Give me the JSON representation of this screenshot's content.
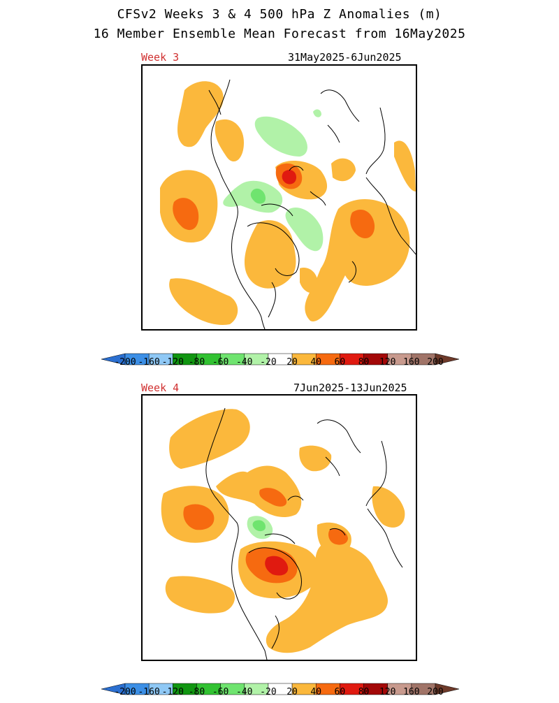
{
  "header": {
    "line1": "CFSv2 Weeks 3 & 4 500 hPa Z Anomalies (m)",
    "line2": "16 Member Ensemble Mean Forecast from 16May2025"
  },
  "panels": [
    {
      "label": "Week 3",
      "dates": "31May2025-6Jun2025"
    },
    {
      "label": "Week 4",
      "dates": "7Jun2025-13Jun2025"
    }
  ],
  "colorbar": {
    "ticks": [
      "-200",
      "-160",
      "-120",
      "-80",
      "-60",
      "-40",
      "-20",
      "20",
      "40",
      "60",
      "80",
      "120",
      "160",
      "200"
    ],
    "colors": [
      "#2b6fd0",
      "#3c8fe6",
      "#8fc8f5",
      "#119611",
      "#32c232",
      "#6fe46f",
      "#b1f2a8",
      "#ffffff",
      "#fbb83c",
      "#f66a10",
      "#e01a10",
      "#a30808",
      "#c89a8e",
      "#a07468",
      "#6e3a2a"
    ]
  }
}
